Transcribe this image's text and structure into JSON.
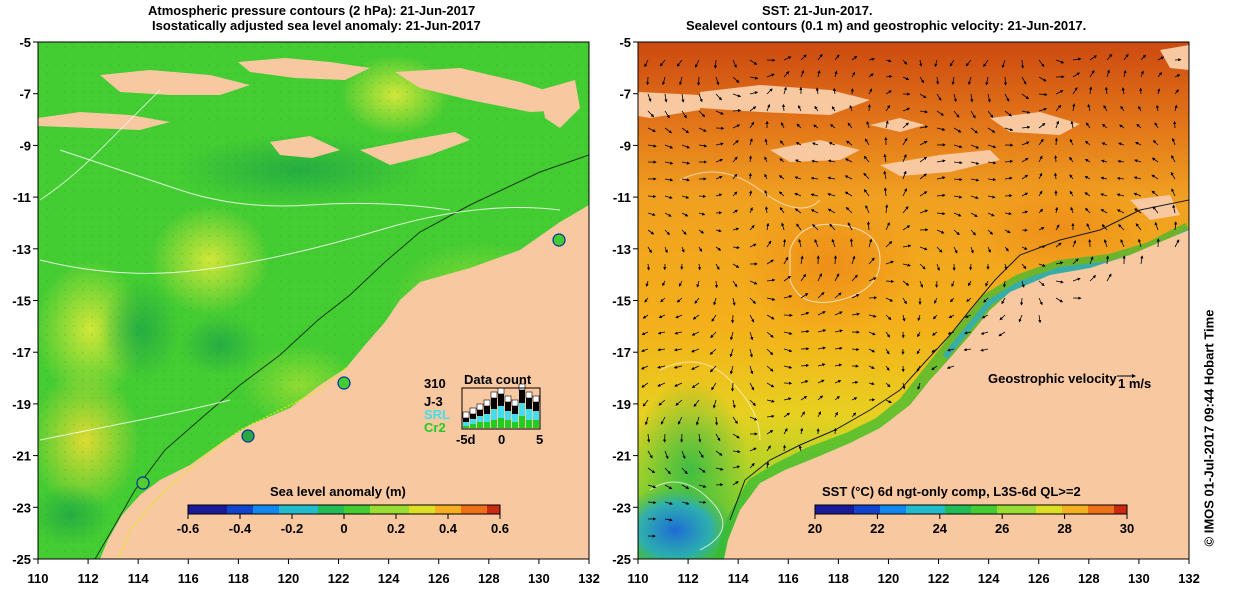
{
  "left_panel": {
    "title_line1": "Atmospheric pressure contours (2 hPa): 21-Jun-2017",
    "title_line2": "Isostatically adjusted sea level anomaly: 21-Jun-2017",
    "y_ticks": [
      "-5",
      "-7",
      "-9",
      "-11",
      "-13",
      "-15",
      "-17",
      "-19",
      "-21",
      "-23",
      "-25"
    ],
    "x_ticks": [
      "110",
      "112",
      "114",
      "116",
      "118",
      "120",
      "122",
      "124",
      "126",
      "128",
      "130",
      "132"
    ],
    "colorbar": {
      "label": "Sea level anomaly (m)",
      "ticks": [
        "-0.6",
        "-0.4",
        "-0.2",
        "0",
        "0.2",
        "0.4",
        "0.6"
      ],
      "range": [
        -0.6,
        0.6
      ]
    },
    "data_count": {
      "title": "Data count",
      "max_label": "310",
      "legend": [
        {
          "name": "J-3",
          "color": "#000000"
        },
        {
          "name": "SRL",
          "color": "#44ddee"
        },
        {
          "name": "Cr2",
          "color": "#22cc22"
        }
      ],
      "x_ticks": [
        "-5d",
        "0",
        "5"
      ]
    }
  },
  "right_panel": {
    "title_line1": "SST: 21-Jun-2017.",
    "title_line2": "Sealevel contours (0.1 m) and geostrophic velocity: 21-Jun-2017.",
    "y_ticks": [
      "-5",
      "-7",
      "-9",
      "-11",
      "-13",
      "-15",
      "-17",
      "-19",
      "-21",
      "-23",
      "-25"
    ],
    "x_ticks": [
      "110",
      "112",
      "114",
      "116",
      "118",
      "120",
      "122",
      "124",
      "126",
      "128",
      "130",
      "132"
    ],
    "velocity_label": "Geostrophic velocity",
    "velocity_scale": "1 m/s",
    "colorbar": {
      "label": "SST (°C) 6d ngt-only comp, L3S-6d QL>=2",
      "ticks": [
        "20",
        "22",
        "24",
        "26",
        "28",
        "30"
      ],
      "range": [
        20,
        30
      ]
    }
  },
  "credit": "© IMOS 01-Jul-2017 09:44 Hobart Time",
  "colors": {
    "land": "#f8c8a0",
    "sea_green": "#33cc33",
    "sst_orange": "#f39a1e"
  }
}
